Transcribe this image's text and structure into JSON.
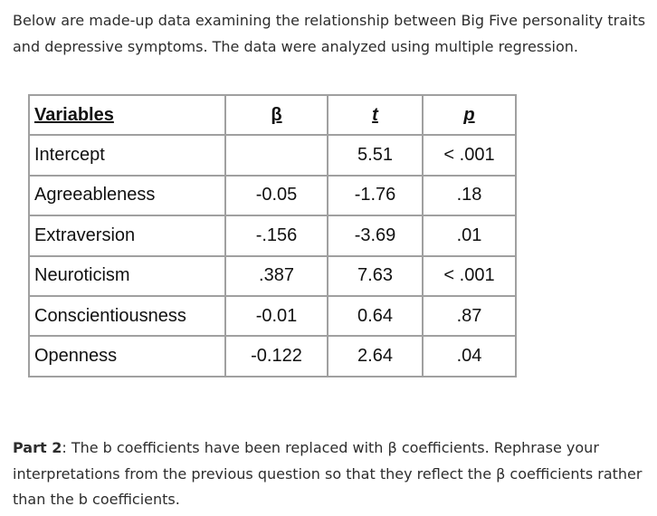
{
  "intro": {
    "text": "Below are made-up data examining the relationship between Big Five personality traits and depressive symptoms. The data were analyzed using multiple regression."
  },
  "table": {
    "headers": {
      "variable": "Variables",
      "beta": "β",
      "t": "t",
      "p": "p"
    },
    "rows": [
      {
        "variable": "Intercept",
        "beta": "",
        "t": "5.51",
        "p": "< .001"
      },
      {
        "variable": "Agreeableness",
        "beta": "-0.05",
        "t": "-1.76",
        "p": ".18"
      },
      {
        "variable": "Extraversion",
        "beta": "-.156",
        "t": "-3.69",
        "p": ".01"
      },
      {
        "variable": "Neuroticism",
        "beta": ".387",
        "t": "7.63",
        "p": "< .001"
      },
      {
        "variable": "Conscientiousness",
        "beta": "-0.01",
        "t": "0.64",
        "p": ".87"
      },
      {
        "variable": "Openness",
        "beta": "-0.122",
        "t": "2.64",
        "p": ".04"
      }
    ]
  },
  "outro": {
    "label": "Part 2",
    "text": ": The b coefficients have been replaced with β coefficients. Rephrase your interpretations from the previous question so that they reflect the β coefficients rather than the b coefficients."
  }
}
